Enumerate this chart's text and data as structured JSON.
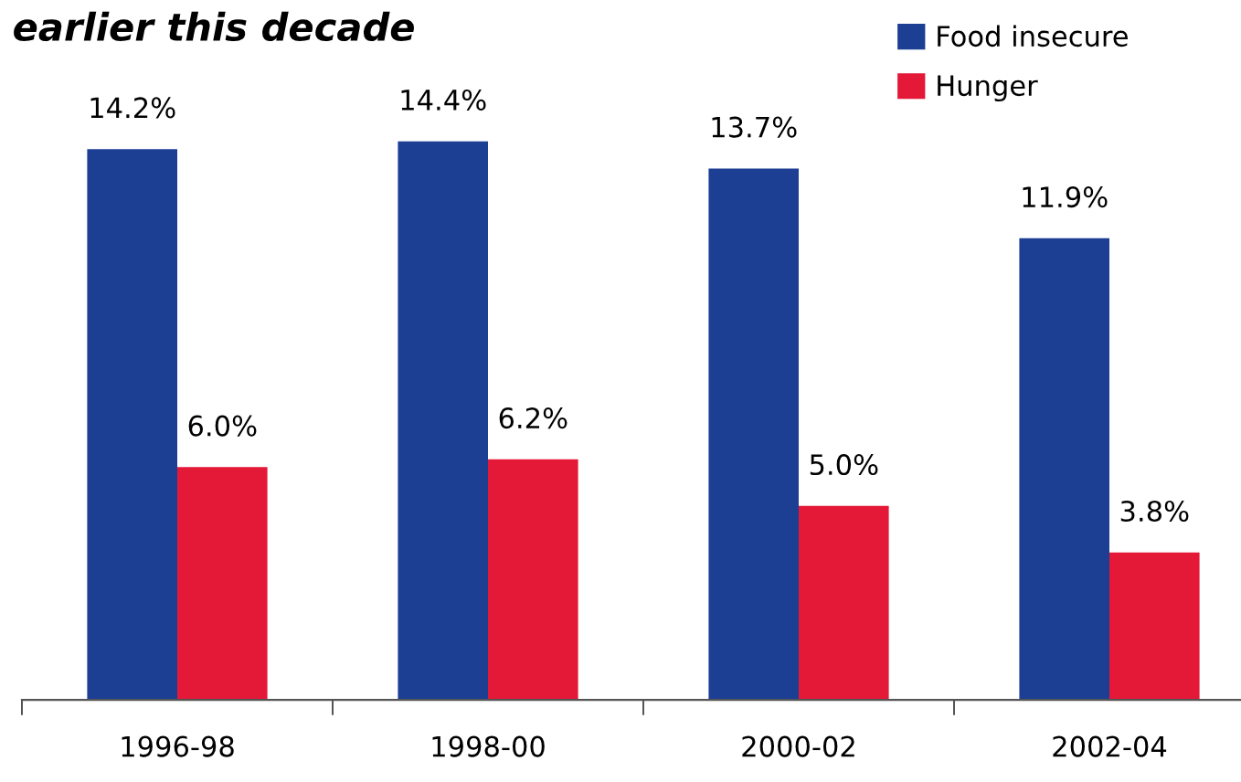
{
  "chart_data": {
    "type": "bar",
    "title": "earlier this decade",
    "categories": [
      "1996-98",
      "1998-00",
      "2000-02",
      "2002-04"
    ],
    "series": [
      {
        "name": "Food insecure",
        "color": "#1c3f94",
        "values": [
          14.2,
          14.4,
          13.7,
          11.9
        ],
        "value_labels": [
          "14.2%",
          "14.4%",
          "13.7%",
          "11.9%"
        ]
      },
      {
        "name": "Hunger",
        "color": "#e31937",
        "values": [
          6.0,
          6.2,
          5.0,
          3.8
        ],
        "value_labels": [
          "6.0%",
          "6.2%",
          "5.0%",
          "3.8%"
        ]
      }
    ],
    "legend": "top right"
  }
}
